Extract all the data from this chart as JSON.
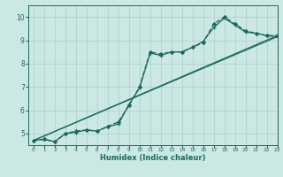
{
  "xlabel": "Humidex (Indice chaleur)",
  "ylabel": "",
  "xlim": [
    -0.5,
    23
  ],
  "ylim": [
    4.5,
    10.5
  ],
  "yticks": [
    5,
    6,
    7,
    8,
    9,
    10
  ],
  "xticks": [
    0,
    1,
    2,
    3,
    4,
    5,
    6,
    7,
    8,
    9,
    10,
    11,
    12,
    13,
    14,
    15,
    16,
    17,
    18,
    19,
    20,
    21,
    22,
    23
  ],
  "bg_color": "#cce8e4",
  "grid_color": "#aacfca",
  "line_color": "#1a6b5a",
  "series": [
    {
      "x": [
        0,
        1,
        2,
        3,
        4,
        5,
        6,
        7,
        8,
        9,
        10,
        11,
        12,
        13,
        14,
        15,
        16,
        17,
        18,
        19,
        20,
        21,
        22,
        23
      ],
      "y": [
        4.7,
        4.75,
        4.65,
        5.0,
        5.1,
        5.15,
        5.1,
        5.3,
        5.5,
        6.2,
        7.0,
        8.5,
        8.4,
        8.5,
        8.5,
        8.7,
        8.9,
        9.7,
        10.0,
        9.7,
        9.4,
        9.3,
        9.2,
        9.2
      ],
      "marker": "D",
      "markersize": 2.0,
      "linewidth": 1.0,
      "linestyle": "--"
    },
    {
      "x": [
        0,
        1,
        2,
        3,
        4,
        5,
        6,
        7,
        8,
        9,
        10,
        11,
        12,
        13,
        14,
        15,
        16,
        17,
        18,
        19,
        20,
        21,
        22,
        23
      ],
      "y": [
        4.7,
        4.75,
        4.65,
        5.0,
        5.05,
        5.15,
        5.1,
        5.3,
        5.4,
        6.25,
        6.95,
        8.45,
        8.35,
        8.5,
        8.5,
        8.7,
        8.95,
        9.55,
        9.95,
        9.65,
        9.35,
        9.3,
        9.2,
        9.15
      ],
      "marker": "+",
      "markersize": 3.5,
      "linewidth": 0.9,
      "linestyle": "-"
    },
    {
      "x": [
        0,
        23
      ],
      "y": [
        4.7,
        9.2
      ],
      "marker": null,
      "markersize": 0,
      "linewidth": 0.9,
      "linestyle": "-"
    },
    {
      "x": [
        0,
        23
      ],
      "y": [
        4.7,
        9.15
      ],
      "marker": null,
      "markersize": 0,
      "linewidth": 0.8,
      "linestyle": "-"
    }
  ]
}
